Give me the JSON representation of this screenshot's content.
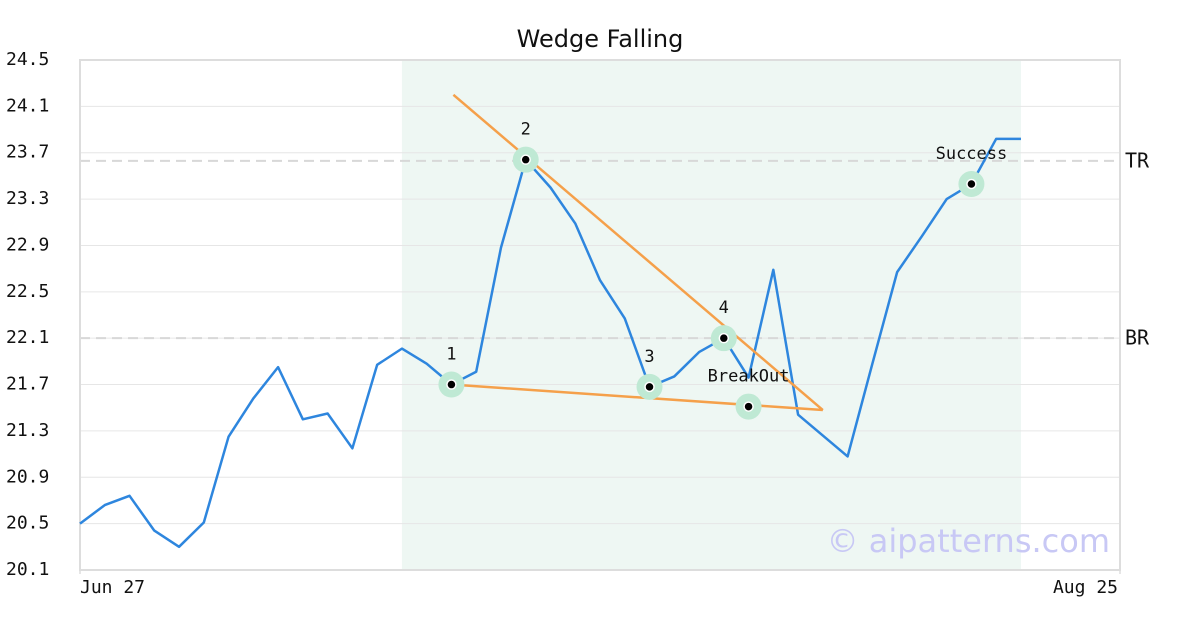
{
  "chart_data": {
    "type": "line",
    "title": "Wedge Falling",
    "x": [
      0,
      1,
      2,
      3,
      4,
      5,
      6,
      7,
      8,
      9,
      10,
      11,
      12,
      13,
      14,
      15,
      16,
      17,
      18,
      19,
      20,
      21,
      22,
      23,
      24,
      25,
      26,
      27,
      28,
      29,
      30,
      31,
      32,
      33,
      34,
      35,
      36,
      37,
      38
    ],
    "series": [
      {
        "color": "#2e86de",
        "values": [
          20.5,
          20.66,
          20.74,
          20.44,
          20.3,
          20.51,
          21.25,
          21.58,
          21.85,
          21.4,
          21.45,
          21.15,
          21.87,
          22.01,
          21.88,
          21.7,
          21.81,
          22.88,
          23.64,
          23.4,
          23.09,
          22.6,
          22.27,
          21.68,
          21.77,
          21.98,
          22.1,
          21.76,
          22.69,
          21.44,
          21.26,
          21.08,
          21.88,
          22.67,
          22.98,
          23.3,
          23.43,
          23.82,
          23.82
        ]
      }
    ],
    "xlim": [
      0,
      42
    ],
    "xticks": [
      {
        "value": 0,
        "label": "Jun 27"
      },
      {
        "value": 42,
        "label": "Aug 25"
      }
    ],
    "ylim": [
      20.1,
      24.5
    ],
    "yticks": [
      20.1,
      20.5,
      20.9,
      21.3,
      21.7,
      22.1,
      22.5,
      22.9,
      23.3,
      23.7,
      24.1,
      24.5
    ],
    "grid": true,
    "pattern_region": [
      13,
      38
    ],
    "trendlines": [
      {
        "color": "#f5a04a",
        "x": [
          15.08,
          30.0
        ],
        "y": [
          24.2,
          21.48
        ]
      },
      {
        "color": "#f5a04a",
        "x": [
          15,
          30.0
        ],
        "y": [
          21.7,
          21.48
        ]
      }
    ],
    "levels": [
      {
        "label": "TR",
        "value": 23.63
      },
      {
        "label": "BR",
        "value": 22.1
      }
    ],
    "markers": [
      {
        "label": "1",
        "x": 15,
        "y": 21.7
      },
      {
        "label": "2",
        "x": 18,
        "y": 23.64
      },
      {
        "label": "3",
        "x": 23,
        "y": 21.68
      },
      {
        "label": "4",
        "x": 26,
        "y": 22.1
      },
      {
        "label": "BreakOut",
        "x": 27,
        "y": 21.51
      },
      {
        "label": "Success",
        "x": 36,
        "y": 23.43
      }
    ],
    "watermark": "© aipatterns.com"
  }
}
